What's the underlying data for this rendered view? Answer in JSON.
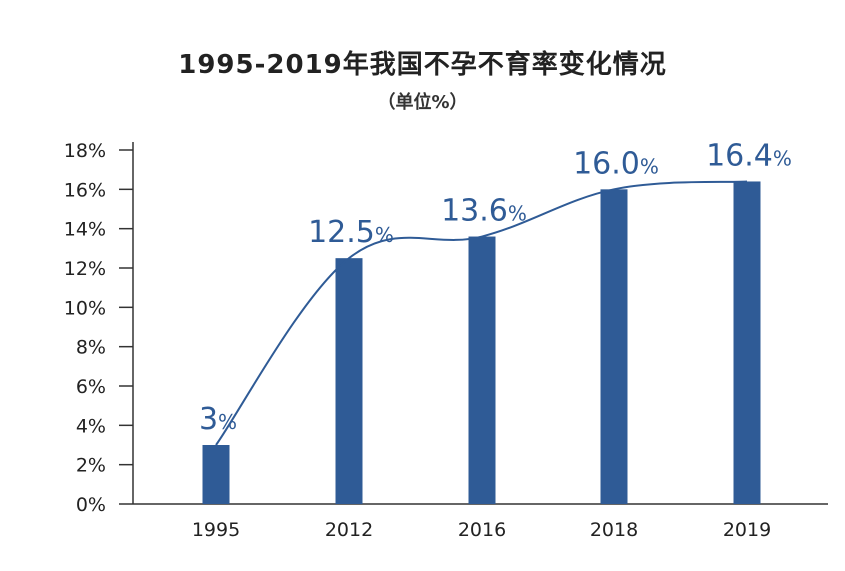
{
  "chart_data": {
    "type": "bar",
    "title": "1995-2019年我国不孕不育率变化情况",
    "subtitle": "（单位%）",
    "categories": [
      "1995",
      "2012",
      "2016",
      "2018",
      "2019"
    ],
    "values": [
      3,
      12.5,
      13.6,
      16.0,
      16.4
    ],
    "value_labels": [
      "3",
      "12.5",
      "13.6",
      "16.0",
      "16.4"
    ],
    "value_suffix": "%",
    "y_ticks": [
      "0%",
      "2%",
      "4%",
      "6%",
      "8%",
      "10%",
      "12%",
      "14%",
      "16%",
      "18%"
    ],
    "ylim": [
      0,
      18
    ],
    "xlabel": "",
    "ylabel": "",
    "trend_line": true,
    "grid": false,
    "bar_color": "#2f5b96",
    "line_color": "#2f5b96",
    "axis_color": "#333333"
  }
}
